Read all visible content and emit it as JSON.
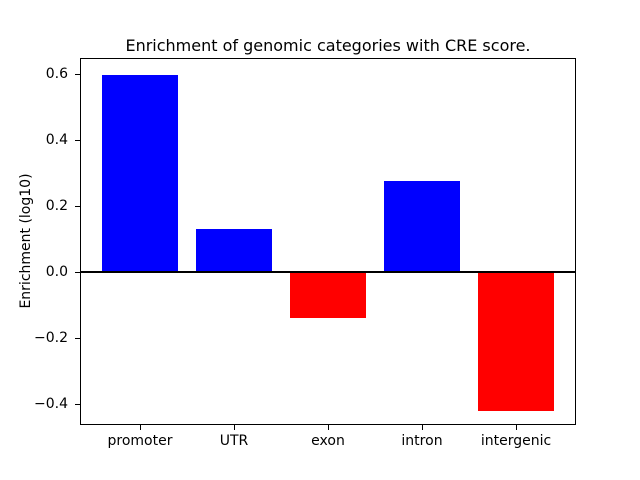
{
  "chart_data": {
    "type": "bar",
    "title": "Enrichment of genomic categories with CRE score.",
    "ylabel": "Enrichment (log10)",
    "xlabel": "",
    "categories": [
      "promoter",
      "UTR",
      "exon",
      "intron",
      "intergenic"
    ],
    "values": [
      0.595,
      0.13,
      -0.14,
      0.275,
      -0.42
    ],
    "bar_colors": [
      "#0000ff",
      "#0000ff",
      "#ff0000",
      "#0000ff",
      "#ff0000"
    ],
    "positive_color": "#0000ff",
    "negative_color": "#ff0000",
    "axis_color": "#000000",
    "background_color": "#ffffff",
    "ylim": [
      -0.464,
      0.648
    ],
    "yticks": [
      {
        "value": 0.6,
        "label": "0.6"
      },
      {
        "value": 0.4,
        "label": "0.4"
      },
      {
        "value": 0.2,
        "label": "0.2"
      },
      {
        "value": 0.0,
        "label": "0.0"
      },
      {
        "value": -0.2,
        "label": "−0.2"
      },
      {
        "value": -0.4,
        "label": "−0.4"
      }
    ],
    "grid": false,
    "zero_line": true,
    "legend_position": "none"
  }
}
